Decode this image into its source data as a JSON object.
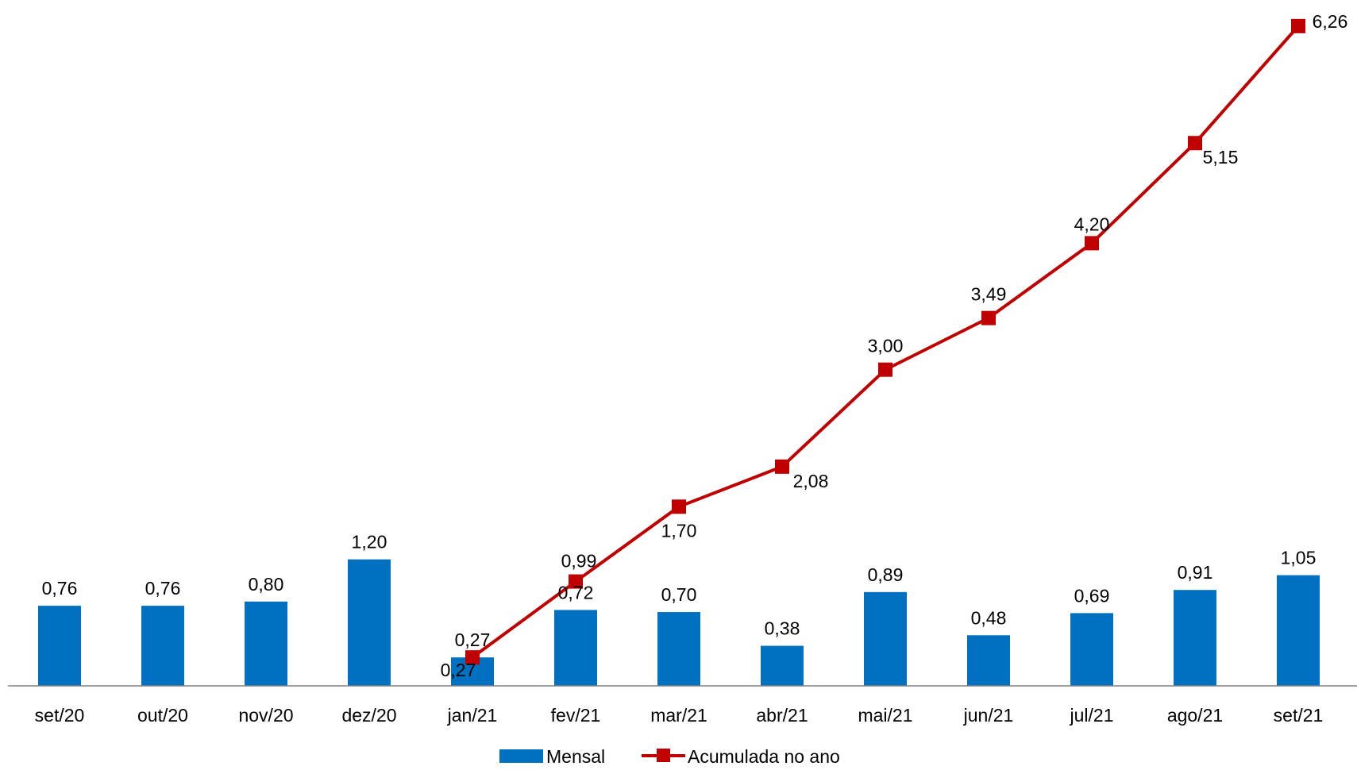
{
  "chart_data": {
    "type": "bar",
    "categories": [
      "set/20",
      "out/20",
      "nov/20",
      "dez/20",
      "jan/21",
      "fev/21",
      "mar/21",
      "abr/21",
      "mai/21",
      "jun/21",
      "jul/21",
      "ago/21",
      "set/21"
    ],
    "series": [
      {
        "name": "Mensal",
        "type": "bar",
        "color": "#0070C0",
        "values": [
          0.76,
          0.76,
          0.8,
          1.2,
          0.27,
          0.72,
          0.7,
          0.38,
          0.89,
          0.48,
          0.69,
          0.91,
          1.05
        ],
        "labels": [
          "0,76",
          "0,76",
          "0,80",
          "1,20",
          "0,27",
          "0,72",
          "0,70",
          "0,38",
          "0,89",
          "0,48",
          "0,69",
          "0,91",
          "1,05"
        ]
      },
      {
        "name": "Acumulada no ano",
        "type": "line",
        "color": "#C00000",
        "marker": "square",
        "values": [
          null,
          null,
          null,
          null,
          0.27,
          0.99,
          1.7,
          2.08,
          3.0,
          3.49,
          4.2,
          5.15,
          6.26
        ],
        "labels": [
          "",
          "",
          "",
          "",
          "0,27",
          "0,99",
          "1,70",
          "2,08",
          "3,00",
          "3,49",
          "4,20",
          "5,15",
          "6,26"
        ]
      }
    ],
    "title": "",
    "xlabel": "",
    "ylabel": "",
    "ylim": [
      0,
      6.5
    ],
    "grid": false,
    "y_axis_visible": false,
    "legend": {
      "position": "bottom-center",
      "entries": [
        "Mensal",
        "Acumulada no ano"
      ]
    }
  }
}
